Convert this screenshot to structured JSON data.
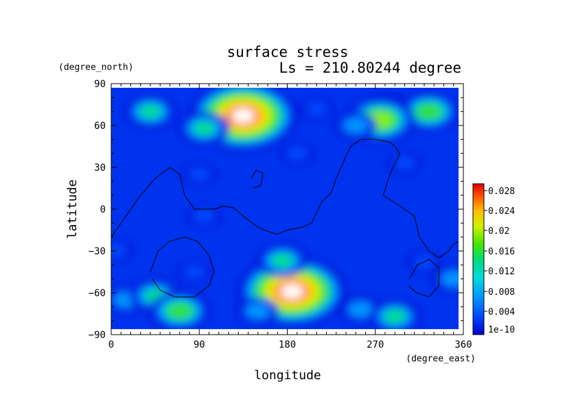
{
  "chart_data": {
    "type": "heatmap",
    "title": "surface stress",
    "subtitle": "Ls = 210.80244 degree",
    "xlabel": "longitude",
    "ylabel": "latitude",
    "x_unit": "(degree_east)",
    "y_unit": "(degree_north)",
    "xlim": [
      0,
      360
    ],
    "ylim": [
      -90,
      90
    ],
    "x_ticks": [
      "0",
      "90",
      "180",
      "270",
      "360"
    ],
    "y_ticks": [
      "90",
      "60",
      "30",
      "0",
      "-30",
      "-60",
      "-90"
    ],
    "grid": false,
    "colorbar": {
      "labels": [
        "1e-10",
        "0.004",
        "0.008",
        "0.012",
        "0.016",
        "0.02",
        "0.024",
        "0.028"
      ],
      "range": [
        0,
        0.03
      ]
    },
    "features": [
      {
        "lon": 135,
        "lat": 67,
        "value": 0.031
      },
      {
        "lon": 185,
        "lat": -59,
        "value": 0.031
      },
      {
        "lon": 40,
        "lat": 70,
        "value": 0.013
      },
      {
        "lon": 95,
        "lat": 58,
        "value": 0.014
      },
      {
        "lon": 280,
        "lat": 68,
        "value": 0.015
      },
      {
        "lon": 325,
        "lat": 70,
        "value": 0.016
      },
      {
        "lon": 275,
        "lat": 64,
        "value": 0.018
      },
      {
        "lon": 250,
        "lat": 60,
        "value": 0.011
      },
      {
        "lon": 210,
        "lat": 72,
        "value": 0.007
      },
      {
        "lon": 300,
        "lat": 33,
        "value": 0.008
      },
      {
        "lon": 190,
        "lat": 40,
        "value": 0.006
      },
      {
        "lon": 90,
        "lat": 25,
        "value": 0.006
      },
      {
        "lon": 95,
        "lat": -5,
        "value": 0.008
      },
      {
        "lon": 175,
        "lat": -37,
        "value": 0.014
      },
      {
        "lon": 85,
        "lat": -45,
        "value": 0.007
      },
      {
        "lon": 15,
        "lat": -65,
        "value": 0.01
      },
      {
        "lon": 45,
        "lat": -62,
        "value": 0.012
      },
      {
        "lon": 70,
        "lat": -73,
        "value": 0.016
      },
      {
        "lon": 150,
        "lat": -73,
        "value": 0.009
      },
      {
        "lon": 255,
        "lat": -72,
        "value": 0.009
      },
      {
        "lon": 290,
        "lat": -77,
        "value": 0.014
      },
      {
        "lon": 320,
        "lat": -38,
        "value": 0.007
      },
      {
        "lon": 350,
        "lat": -50,
        "value": 0.009
      },
      {
        "lon": 5,
        "lat": -30,
        "value": 0.007
      }
    ],
    "contours": [
      {
        "name": "contour-west-coast",
        "points": [
          [
            0,
            -20
          ],
          [
            15,
            -5
          ],
          [
            30,
            10
          ],
          [
            45,
            22
          ],
          [
            60,
            30
          ],
          [
            70,
            25
          ],
          [
            75,
            10
          ],
          [
            85,
            0
          ],
          [
            105,
            0
          ],
          [
            115,
            2
          ],
          [
            125,
            1
          ],
          [
            135,
            -5
          ],
          [
            150,
            -13
          ],
          [
            160,
            -16
          ],
          [
            170,
            -18
          ],
          [
            180,
            -15
          ],
          [
            195,
            -13
          ],
          [
            205,
            -10
          ],
          [
            215,
            5
          ],
          [
            225,
            12
          ],
          [
            230,
            22
          ],
          [
            235,
            30
          ],
          [
            240,
            38
          ],
          [
            245,
            45
          ],
          [
            255,
            50
          ],
          [
            270,
            50
          ],
          [
            285,
            48
          ],
          [
            290,
            45
          ],
          [
            295,
            40
          ],
          [
            285,
            25
          ],
          [
            278,
            10
          ],
          [
            300,
            0
          ],
          [
            310,
            -5
          ],
          [
            315,
            -20
          ],
          [
            325,
            -30
          ],
          [
            335,
            -35
          ],
          [
            345,
            -30
          ],
          [
            350,
            -25
          ],
          [
            360,
            -22
          ]
        ]
      },
      {
        "name": "contour-small-island",
        "points": [
          [
            143,
            22
          ],
          [
            148,
            28
          ],
          [
            155,
            26
          ],
          [
            153,
            17
          ],
          [
            145,
            15
          ]
        ]
      },
      {
        "name": "contour-southwest-basin",
        "points": [
          [
            40,
            -45
          ],
          [
            48,
            -30
          ],
          [
            60,
            -23
          ],
          [
            75,
            -20
          ],
          [
            88,
            -23
          ],
          [
            100,
            -33
          ],
          [
            105,
            -45
          ],
          [
            100,
            -55
          ],
          [
            85,
            -63
          ],
          [
            65,
            -63
          ],
          [
            50,
            -58
          ],
          [
            42,
            -50
          ]
        ]
      },
      {
        "name": "contour-southeast-basin",
        "points": [
          [
            305,
            -50
          ],
          [
            313,
            -40
          ],
          [
            325,
            -36
          ],
          [
            335,
            -42
          ],
          [
            335,
            -55
          ],
          [
            325,
            -63
          ],
          [
            312,
            -60
          ],
          [
            304,
            -55
          ]
        ]
      }
    ]
  }
}
